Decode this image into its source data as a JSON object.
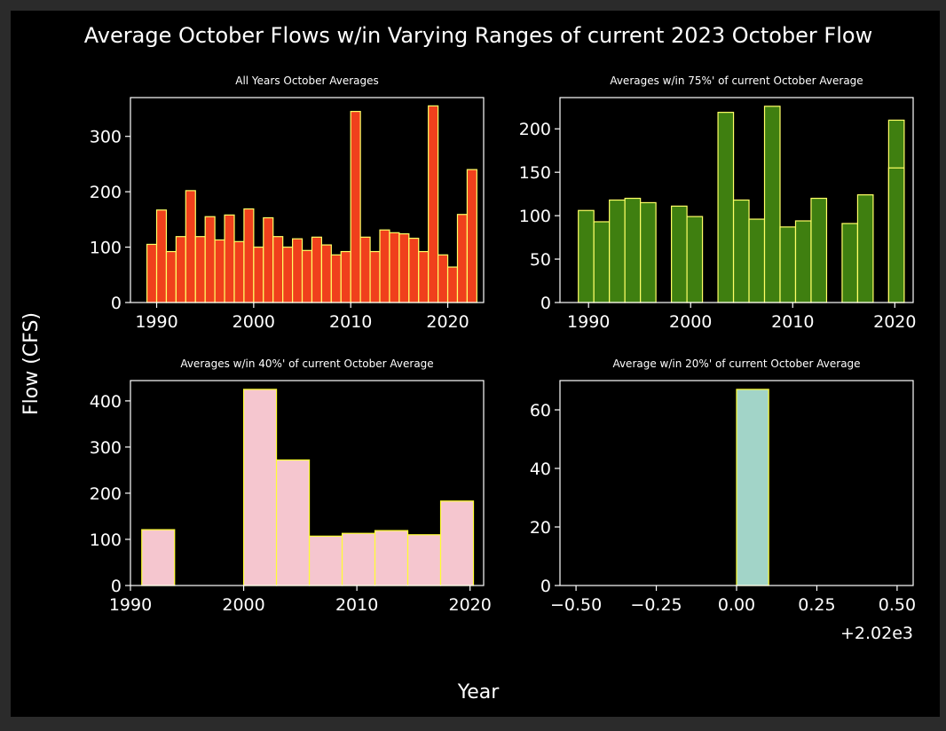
{
  "figure": {
    "suptitle": "Average October Flows w/in Varying Ranges of current 2023 October Flow",
    "xlabel": "Year",
    "ylabel": "Flow (CFS)",
    "background": "#000000",
    "text_color": "#ffffff"
  },
  "chart_data": [
    {
      "type": "bar",
      "title": "All Years October Averages",
      "fill": "#f0401c",
      "edge": "#ffff66",
      "bar_width": 1,
      "xlim": [
        1987.3,
        2023.7
      ],
      "ylim": [
        0,
        370
      ],
      "xticks": [
        1990,
        2000,
        2010,
        2020
      ],
      "xtick_labels": [
        "1990",
        "2000",
        "2010",
        "2020"
      ],
      "yticks": [
        0,
        100,
        200,
        300
      ],
      "ytick_labels": [
        "0",
        "100",
        "200",
        "300"
      ],
      "x": [
        1989,
        1990,
        1991,
        1992,
        1993,
        1994,
        1995,
        1996,
        1997,
        1998,
        1999,
        2000,
        2001,
        2002,
        2003,
        2004,
        2005,
        2006,
        2007,
        2008,
        2009,
        2010,
        2011,
        2012,
        2013,
        2014,
        2015,
        2016,
        2017,
        2018,
        2019,
        2020,
        2021
      ],
      "values": [
        105,
        167,
        92,
        119,
        202,
        119,
        155,
        113,
        158,
        110,
        169,
        100,
        153,
        119,
        100,
        115,
        94,
        118,
        104,
        86,
        92,
        345,
        118,
        92,
        131,
        126,
        124,
        116,
        92,
        355,
        86,
        64,
        159
      ],
      "extra": {
        "x": 2022,
        "value": 240
      }
    },
    {
      "type": "bar",
      "title": "Averages w/in 75%' of current October Average",
      "fill": "#3f7f10",
      "edge": "#ffff66",
      "bar_width": 1.52,
      "xlim": [
        1987.2,
        2021.8
      ],
      "ylim": [
        0,
        236
      ],
      "xticks": [
        1990,
        2000,
        2010,
        2020
      ],
      "xtick_labels": [
        "1990",
        "2000",
        "2010",
        "2020"
      ],
      "yticks": [
        0,
        50,
        100,
        150,
        200
      ],
      "ytick_labels": [
        "0",
        "50",
        "100",
        "150",
        "200"
      ],
      "x": [
        1989,
        1990.52,
        1992.04,
        1993.56,
        1995.08,
        1998.12,
        1999.64,
        2002.68,
        2004.2,
        2005.72,
        2007.24,
        2008.76,
        2010.28,
        2011.8,
        2014.84,
        2016.36,
        2019.4
      ],
      "values": [
        106,
        93,
        118,
        120,
        115,
        111,
        99,
        219,
        118,
        96,
        226,
        87,
        94,
        120,
        91,
        124,
        210
      ],
      "extra": {
        "x": 2019.4,
        "value": 155
      }
    },
    {
      "type": "bar",
      "title": "Averages w/in 40%' of current October Average",
      "fill": "#f5c6cf",
      "edge": "#ffff33",
      "bar_width": 2.9,
      "xlim": [
        1990,
        2021.2
      ],
      "ylim": [
        0,
        444
      ],
      "xticks": [
        1990,
        2000,
        2010,
        2020
      ],
      "xtick_labels": [
        "1990",
        "2000",
        "2010",
        "2020"
      ],
      "yticks": [
        0,
        100,
        200,
        300,
        400
      ],
      "ytick_labels": [
        "0",
        "100",
        "200",
        "300",
        "400"
      ],
      "x": [
        1991,
        2000,
        2002.9,
        2005.8,
        2008.7,
        2011.6,
        2014.5,
        2017.4
      ],
      "values": [
        121,
        425,
        272,
        107,
        113,
        119,
        110,
        183
      ]
    },
    {
      "type": "bar",
      "title": "Average w/in 20%' of current October Average",
      "fill": "#a2d4c8",
      "edge": "#ffff33",
      "bar_width": 0.1,
      "xlim": [
        -0.55,
        0.55
      ],
      "ylim": [
        0,
        70
      ],
      "xticks": [
        -0.5,
        -0.25,
        0,
        0.25,
        0.5
      ],
      "xtick_labels": [
        "−0.50",
        "−0.25",
        "0.00",
        "0.25",
        "0.50"
      ],
      "x_offset_label": "+2.02e3",
      "yticks": [
        0,
        20,
        40,
        60
      ],
      "ytick_labels": [
        "0",
        "20",
        "40",
        "60"
      ],
      "x": [
        0
      ],
      "values": [
        67
      ]
    }
  ]
}
